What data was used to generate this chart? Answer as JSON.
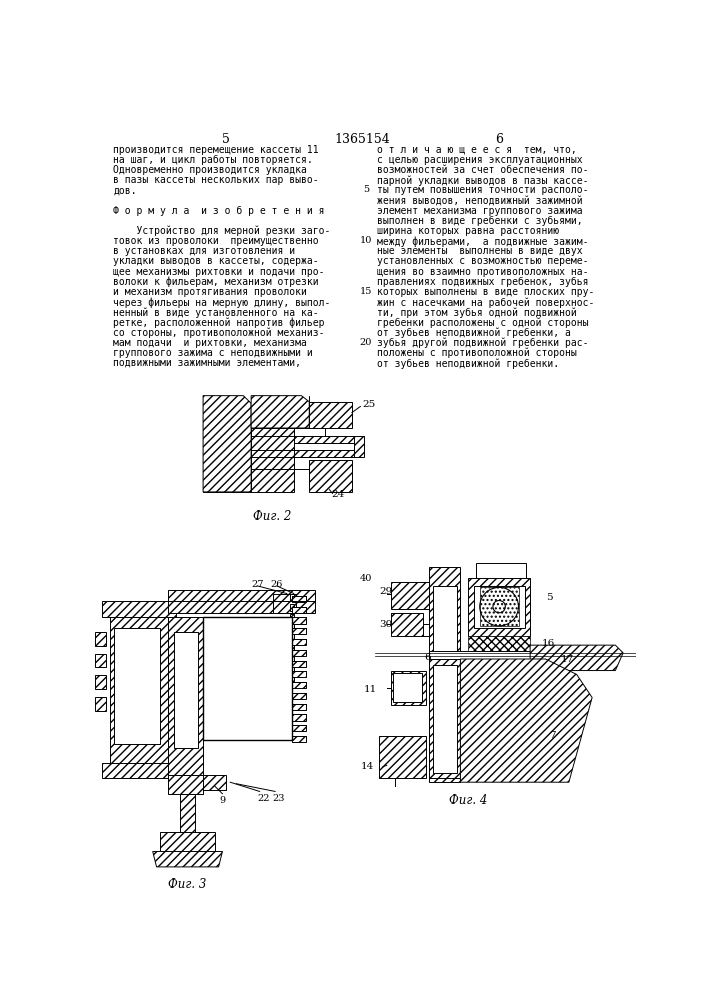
{
  "page_number_left": "5",
  "page_number_center": "1365154",
  "page_number_right": "6",
  "col_left_lines": [
    "производится перемещение кассеты 11",
    "на шаг, и цикл работы повторяется.",
    "Одновременно производится укладка",
    "в пазы кассеты нескольких пар выво-",
    "дов.",
    "",
    "Ф о р м у л а  и з о б р е т е н и я",
    "",
    "    Устройство для мерной резки заго-",
    "товок из проволоки  преимущественно",
    "в установках для изготовления и",
    "укладки выводов в кассеты, содержа-",
    "щее механизмы рихтовки и подачи про-",
    "волоки к фильерам, механизм отрезки",
    "и механизм протягивания проволоки",
    "через фильеры на мерную длину, выпол-",
    "ненный в виде установленного на ка-",
    "ретке, расположенной напротив фильер",
    "со стороны, противоположной механиз-",
    "мам подачи  и рихтовки, механизма",
    "группового зажима с неподвижными и",
    "подвижными зажимными элементами,"
  ],
  "col_right_lines": [
    "о т л и ч а ю щ е е с я  тем, что,",
    "с целью расширения эксплуатационных",
    "возможностей за счет обеспечения по-",
    "парной укладки выводов в пазы кассе-",
    "ты путем повышения точности располо-",
    "жения выводов, неподвижный зажимной",
    "элемент механизма группового зажима",
    "выполнен в виде гребенки с зубьями,",
    "ширина которых равна расстоянию",
    "между фильерами,  а подвижные зажим-",
    "ные элементы  выполнены в виде двух",
    "установленных с возможностью переме-",
    "щения во взаимно противоположных на-",
    "правлениях подвижных гребенок, зубья",
    "которых выполнены в виде плоских пру-",
    "жин с насечками на рабочей поверхнос-",
    "ти, при этом зубья одной подвижной",
    "гребенки расположены с одной стороны",
    "от зубьев неподвижной гребенки, а",
    "зубья другой подвижной гребенки рас-",
    "положены с противоположной стороны",
    "от зубьев неподвижной гребенки."
  ],
  "background_color": "#ffffff",
  "text_color": "#000000"
}
